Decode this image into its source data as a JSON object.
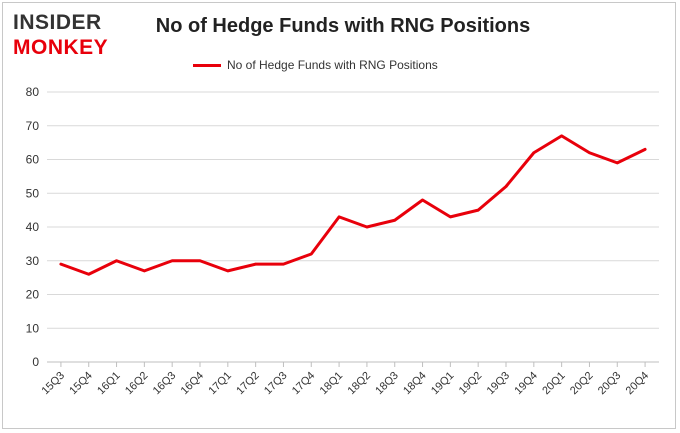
{
  "logo": {
    "line1": "INSIDER",
    "line2": "MONKEY"
  },
  "chart_data": {
    "type": "line",
    "title": "No of Hedge Funds with RNG Positions",
    "xlabel": "",
    "ylabel": "",
    "ylim": [
      0,
      80
    ],
    "yticks": [
      0,
      10,
      20,
      30,
      40,
      50,
      60,
      70,
      80
    ],
    "grid": true,
    "legend_position": "top-center",
    "categories": [
      "15Q3",
      "15Q4",
      "16Q1",
      "16Q2",
      "16Q3",
      "16Q4",
      "17Q1",
      "17Q2",
      "17Q3",
      "17Q4",
      "18Q1",
      "18Q2",
      "18Q3",
      "18Q4",
      "19Q1",
      "19Q2",
      "19Q3",
      "19Q4",
      "20Q1",
      "20Q2",
      "20Q3",
      "20Q4"
    ],
    "series": [
      {
        "name": "No of Hedge Funds with RNG Positions",
        "color": "#e8000b",
        "values": [
          29,
          26,
          30,
          27,
          30,
          30,
          27,
          29,
          29,
          32,
          43,
          40,
          42,
          48,
          43,
          45,
          52,
          62,
          67,
          62,
          59,
          63
        ]
      }
    ]
  }
}
